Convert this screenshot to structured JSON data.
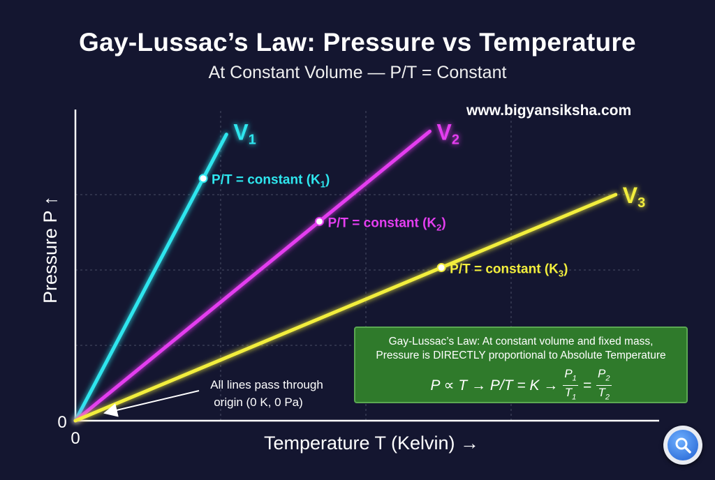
{
  "title": "Gay-Lussac’s Law: Pressure vs Temperature",
  "subtitle": "At Constant Volume — P/T = Constant",
  "website": "www.bigyansiksha.com",
  "annotation": {
    "line1": "All lines pass through",
    "line2": "origin (0 K, 0 Pa)"
  },
  "law_box": {
    "line1": "Gay-Lussac’s Law: At constant volume and fixed mass,",
    "line2": "Pressure is DIRECTLY proportional to Absolute Temperature",
    "formula_left": "P ∝ T → P/T = K →",
    "frac1_num": "P",
    "frac1_num_sub": "1",
    "frac1_den": "T",
    "frac1_den_sub": "1",
    "equals": "=",
    "frac2_num": "P",
    "frac2_num_sub": "2",
    "frac2_den": "T",
    "frac2_den_sub": "2"
  },
  "search_button": {
    "icon": "search-icon"
  },
  "chart_data": {
    "type": "line",
    "title": "Gay-Lussac’s Law: Pressure vs Temperature",
    "xlabel": "Temperature T (Kelvin) →",
    "ylabel": "Pressure P ↑",
    "x_origin_label": "0",
    "y_origin_label": "0",
    "xlim": [
      0,
      10
    ],
    "ylim": [
      0,
      10
    ],
    "grid": true,
    "series": [
      {
        "name": "V",
        "sub": "1",
        "color": "#2ee6ee",
        "x": [
          0,
          2.6
        ],
        "y": [
          0,
          9.5
        ],
        "marker_x": 2.2,
        "marker_label": "P/T = constant (K",
        "marker_sub": "1",
        "marker_label_end": ")"
      },
      {
        "name": "V",
        "sub": "2",
        "color": "#e43ef0",
        "x": [
          0,
          6.1
        ],
        "y": [
          0,
          9.6
        ],
        "marker_x": 4.2,
        "marker_label": "P/T = constant (K",
        "marker_sub": "2",
        "marker_label_end": ")"
      },
      {
        "name": "V",
        "sub": "3",
        "color": "#f2ee3c",
        "x": [
          0,
          9.3
        ],
        "y": [
          0,
          7.5
        ],
        "marker_x": 6.3,
        "marker_label": "P/T = constant (K",
        "marker_sub": "3",
        "marker_label_end": ")"
      }
    ]
  }
}
